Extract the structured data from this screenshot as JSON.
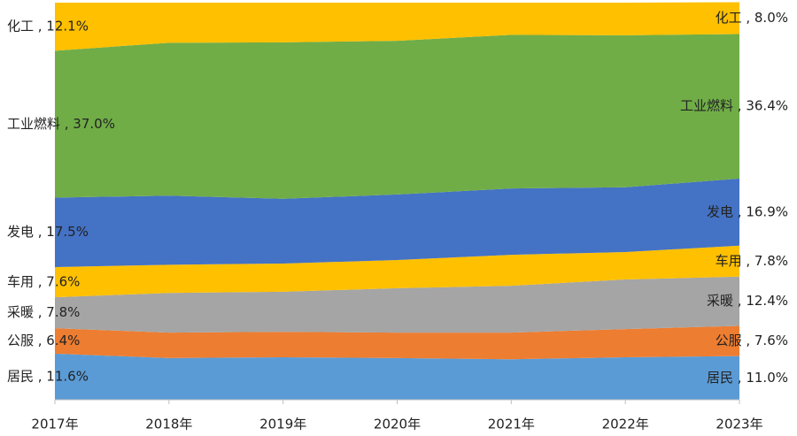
{
  "chart_data": {
    "type": "stacked-area",
    "categories": [
      "2017年",
      "2018年",
      "2019年",
      "2020年",
      "2021年",
      "2022年",
      "2023年"
    ],
    "ylim": [
      0,
      100
    ],
    "series": [
      {
        "name": "居民",
        "color": "#5b9bd5",
        "values": [
          11.6,
          10.5,
          10.7,
          10.5,
          10.2,
          10.7,
          11.0
        ],
        "value_labels": [
          "居民 , 11.6%",
          null,
          null,
          null,
          null,
          null,
          "居民 , 11.0%"
        ]
      },
      {
        "name": "公服",
        "color": "#ed7d31",
        "values": [
          6.4,
          6.4,
          6.4,
          6.4,
          6.7,
          7.1,
          7.6
        ],
        "value_labels": [
          "公服 , 6.4%",
          null,
          null,
          null,
          null,
          null,
          "公服 , 7.6%"
        ]
      },
      {
        "name": "采暖",
        "color": "#a5a5a5",
        "values": [
          7.8,
          10.0,
          10.1,
          11.2,
          11.8,
          12.5,
          12.4
        ],
        "value_labels": [
          "采暖 , 7.8%",
          null,
          null,
          null,
          null,
          null,
          "采暖 , 12.4%"
        ]
      },
      {
        "name": "车用",
        "color": "#ffc000",
        "values": [
          7.6,
          7.1,
          7.1,
          7.1,
          7.8,
          6.9,
          7.8
        ],
        "value_labels": [
          "车用 , 7.6%",
          null,
          null,
          null,
          null,
          null,
          "车用 , 7.8%"
        ]
      },
      {
        "name": "发电",
        "color": "#4472c4",
        "values": [
          17.5,
          17.4,
          16.3,
          16.5,
          16.7,
          16.3,
          16.9
        ],
        "value_labels": [
          "发电 , 17.5%",
          null,
          null,
          null,
          null,
          null,
          "发电 , 16.9%"
        ]
      },
      {
        "name": "工业燃料",
        "color": "#70ad47",
        "values": [
          37.0,
          38.5,
          39.4,
          38.7,
          38.7,
          38.3,
          36.4
        ],
        "value_labels": [
          "工业燃料 , 37.0%",
          null,
          null,
          null,
          null,
          null,
          "工业燃料 , 36.4%"
        ]
      },
      {
        "name": "化工",
        "color": "#ffc000",
        "values": [
          12.1,
          10.1,
          10.0,
          9.6,
          8.1,
          8.2,
          8.0
        ],
        "value_labels": [
          "化工 , 12.1%",
          null,
          null,
          null,
          null,
          null,
          "化工 , 8.0%"
        ]
      }
    ]
  }
}
